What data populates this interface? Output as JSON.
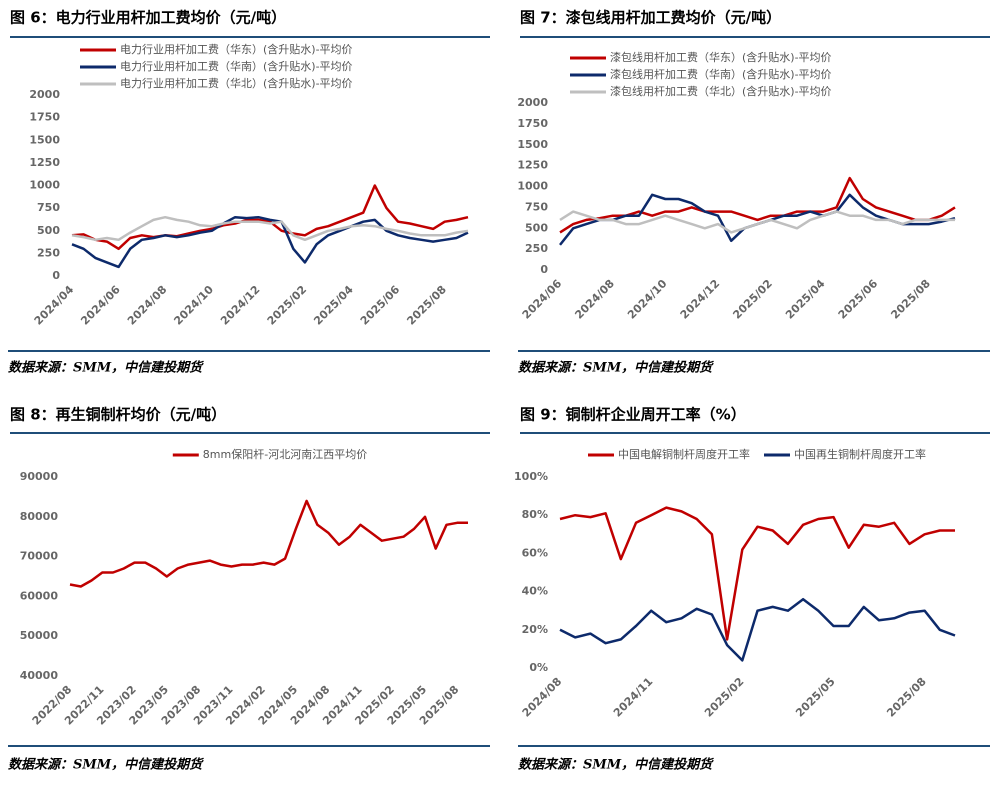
{
  "chart_data": [
    {
      "type": "line",
      "title": "图 6：电力行业用杆加工费均价（元/吨）",
      "source": "数据来源：SMM，中信建投期货",
      "legend": "upper left",
      "categories": [
        "2024/04",
        null,
        null,
        null,
        "2024/06",
        null,
        null,
        null,
        "2024/08",
        null,
        null,
        null,
        "2024/10",
        null,
        null,
        null,
        "2024/12",
        null,
        null,
        null,
        "2025/02",
        null,
        null,
        null,
        "2025/04",
        null,
        null,
        null,
        "2025/06",
        null,
        null,
        null,
        "2025/08",
        null,
        null
      ],
      "ylim": [
        0,
        2000
      ],
      "yticks": [
        0,
        250,
        500,
        750,
        1000,
        1250,
        1500,
        1750,
        2000
      ],
      "series": [
        {
          "name": "电力行业用杆加工费（华东）(含升贴水)-平均价",
          "color": "#c00000",
          "values": [
            450,
            460,
            400,
            380,
            300,
            420,
            450,
            430,
            450,
            440,
            470,
            500,
            520,
            560,
            580,
            620,
            620,
            600,
            500,
            470,
            450,
            520,
            550,
            600,
            650,
            700,
            1000,
            750,
            600,
            580,
            550,
            520,
            600,
            620,
            650
          ]
        },
        {
          "name": "电力行业用杆加工费（华南）(含升贴水)-平均价",
          "color": "#0d2a6b",
          "values": [
            350,
            300,
            200,
            150,
            100,
            300,
            400,
            420,
            450,
            430,
            450,
            480,
            500,
            580,
            650,
            640,
            650,
            620,
            600,
            300,
            150,
            350,
            450,
            500,
            550,
            600,
            620,
            500,
            450,
            420,
            400,
            380,
            400,
            420,
            480
          ]
        },
        {
          "name": "电力行业用杆加工费（华北）(含升贴水)-平均价",
          "color": "#bfbfbf",
          "values": [
            450,
            430,
            400,
            420,
            400,
            480,
            550,
            620,
            650,
            620,
            600,
            560,
            550,
            580,
            600,
            600,
            600,
            580,
            600,
            450,
            400,
            450,
            500,
            520,
            550,
            560,
            550,
            520,
            500,
            470,
            450,
            450,
            450,
            480,
            500
          ]
        }
      ]
    },
    {
      "type": "line",
      "title": "图 7：漆包线用杆加工费均价（元/吨）",
      "source": "数据来源：SMM，中信建投期货",
      "legend": "upper left",
      "categories": [
        "2024/06",
        null,
        null,
        null,
        "2024/08",
        null,
        null,
        null,
        "2024/10",
        null,
        null,
        null,
        "2024/12",
        null,
        null,
        null,
        "2025/02",
        null,
        null,
        null,
        "2025/04",
        null,
        null,
        null,
        "2025/06",
        null,
        null,
        null,
        "2025/08",
        null,
        null
      ],
      "ylim": [
        0,
        2000
      ],
      "yticks": [
        0,
        250,
        500,
        750,
        1000,
        1250,
        1500,
        1750,
        2000
      ],
      "series": [
        {
          "name": "漆包线用杆加工费（华东）(含升贴水)-平均价",
          "color": "#c00000",
          "values": [
            450,
            550,
            600,
            620,
            650,
            650,
            700,
            650,
            700,
            700,
            750,
            700,
            700,
            700,
            650,
            600,
            650,
            650,
            700,
            700,
            700,
            750,
            1100,
            850,
            750,
            700,
            650,
            600,
            600,
            650,
            750
          ]
        },
        {
          "name": "漆包线用杆加工费（华南）(含升贴水)-平均价",
          "color": "#0d2a6b",
          "values": [
            300,
            500,
            550,
            600,
            600,
            650,
            650,
            900,
            850,
            850,
            800,
            700,
            650,
            350,
            500,
            550,
            600,
            650,
            650,
            700,
            650,
            700,
            900,
            750,
            650,
            600,
            550,
            550,
            550,
            580,
            620
          ]
        },
        {
          "name": "漆包线用杆加工费（华北）(含升贴水)-平均价",
          "color": "#bfbfbf",
          "values": [
            600,
            700,
            650,
            600,
            600,
            550,
            550,
            600,
            650,
            600,
            550,
            500,
            550,
            450,
            500,
            550,
            600,
            550,
            500,
            600,
            650,
            700,
            650,
            650,
            600,
            600,
            550,
            600,
            600,
            600,
            600
          ]
        }
      ]
    },
    {
      "type": "line",
      "title": "图 8：再生铜制杆均价（元/吨）",
      "source": "数据来源：SMM，中信建投期货",
      "legend": "upper center",
      "categories": [
        "2022/08",
        null,
        null,
        "2022/11",
        null,
        null,
        "2023/02",
        null,
        null,
        "2023/05",
        null,
        null,
        "2023/08",
        null,
        null,
        "2023/11",
        null,
        null,
        "2024/02",
        null,
        null,
        "2024/05",
        null,
        null,
        "2024/08",
        null,
        null,
        "2024/11",
        null,
        null,
        "2025/02",
        null,
        null,
        "2025/05",
        null,
        null,
        "2025/08",
        null
      ],
      "ylim": [
        40000,
        90000
      ],
      "yticks": [
        40000,
        50000,
        60000,
        70000,
        80000,
        90000
      ],
      "series": [
        {
          "name": "8mm保阳杆-河北河南江西平均价",
          "color": "#c00000",
          "values": [
            63000,
            62500,
            64000,
            66000,
            66000,
            67000,
            68500,
            68500,
            67000,
            65000,
            67000,
            68000,
            68500,
            69000,
            68000,
            67500,
            68000,
            68000,
            68500,
            68000,
            69500,
            77000,
            84000,
            78000,
            76000,
            73000,
            75000,
            78000,
            76000,
            74000,
            74500,
            75000,
            77000,
            80000,
            72000,
            78000,
            78500,
            78500
          ]
        }
      ]
    },
    {
      "type": "line",
      "title": "图 9：铜制杆企业周开工率（%）",
      "source": "数据来源：SMM，中信建投期货",
      "legend": "upper center",
      "categories": [
        "2024/08",
        null,
        null,
        null,
        null,
        null,
        "2024/11",
        null,
        null,
        null,
        null,
        null,
        "2025/02",
        null,
        null,
        null,
        null,
        null,
        "2025/05",
        null,
        null,
        null,
        null,
        null,
        "2025/08",
        null,
        null
      ],
      "ylim": [
        0,
        100
      ],
      "yticks": [
        {
          "value": 0,
          "label": "0%"
        },
        {
          "value": 20,
          "label": "20%"
        },
        {
          "value": 40,
          "label": "40%"
        },
        {
          "value": 60,
          "label": "60%"
        },
        {
          "value": 80,
          "label": "80%"
        },
        {
          "value": 100,
          "label": "100%"
        }
      ],
      "series": [
        {
          "name": "中国电解铜制杆周度开工率",
          "color": "#c00000",
          "values": [
            78,
            80,
            79,
            81,
            57,
            76,
            80,
            84,
            82,
            78,
            70,
            15,
            62,
            74,
            72,
            65,
            75,
            78,
            79,
            63,
            75,
            74,
            76,
            65,
            70,
            72,
            72
          ]
        },
        {
          "name": "中国再生铜制杆周度开工率",
          "color": "#0d2a6b",
          "values": [
            20,
            16,
            18,
            13,
            15,
            22,
            30,
            24,
            26,
            31,
            28,
            12,
            4,
            30,
            32,
            30,
            36,
            30,
            22,
            22,
            32,
            25,
            26,
            29,
            30,
            20,
            17
          ]
        }
      ]
    }
  ]
}
